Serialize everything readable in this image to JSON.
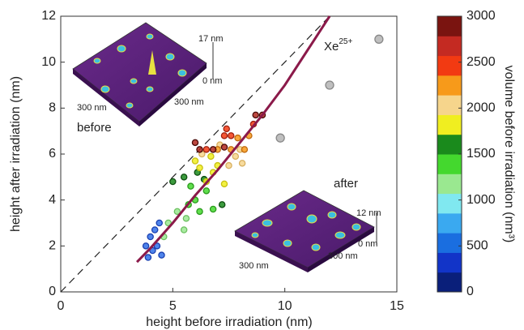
{
  "chart_data": {
    "type": "scatter",
    "x_label": "height before irradiation (nm)",
    "y_label": "height after irradiation (nm)",
    "xlim": [
      0,
      15
    ],
    "xticks": [
      0,
      5,
      10,
      15
    ],
    "ylim": [
      0,
      12
    ],
    "yticks": [
      0,
      2,
      4,
      6,
      8,
      10,
      12
    ],
    "series": [
      {
        "color": "#2f6fe8",
        "edge": "#1a3fb0",
        "x": [
          3.9,
          4.1,
          4.3,
          4.0,
          4.2,
          4.4,
          3.8,
          4.5
        ],
        "values": [
          1.5,
          1.8,
          2.0,
          2.4,
          2.7,
          3.0,
          2.0,
          1.6
        ]
      },
      {
        "color": "#9ae890",
        "edge": "#6cc060",
        "x": [
          4.6,
          4.8,
          5.5,
          5.2,
          5.6
        ],
        "values": [
          2.4,
          3.0,
          2.7,
          3.5,
          3.2
        ]
      },
      {
        "color": "#44d82e",
        "edge": "#2a9a1c",
        "x": [
          5.7,
          6.0,
          6.2,
          6.5,
          5.8,
          6.8
        ],
        "values": [
          3.8,
          4.0,
          3.5,
          4.4,
          4.6,
          3.6
        ]
      },
      {
        "color": "#1a8a1c",
        "edge": "#0e4e10",
        "x": [
          5.0,
          5.5,
          6.1,
          7.2,
          6.4
        ],
        "values": [
          4.8,
          5.0,
          5.2,
          3.8,
          4.9
        ]
      },
      {
        "color": "#f0ee20",
        "edge": "#c8c010",
        "x": [
          6.5,
          6.8,
          7.0,
          6.0,
          6.7,
          7.3,
          6.2
        ],
        "values": [
          4.8,
          5.2,
          5.5,
          5.7,
          5.9,
          4.7,
          5.4
        ]
      },
      {
        "color": "#f6d58c",
        "edge": "#d8b060",
        "x": [
          7.5,
          7.8,
          8.1,
          6.3,
          7.1,
          8.0
        ],
        "values": [
          5.5,
          5.9,
          5.6,
          6.0,
          6.4,
          6.2
        ]
      },
      {
        "color": "#f79a1a",
        "edge": "#c06a10",
        "x": [
          7.6,
          7.9,
          8.2,
          8.4,
          7.0
        ],
        "values": [
          6.2,
          6.7,
          6.2,
          6.8,
          6.2
        ]
      },
      {
        "color": "#f23a12",
        "edge": "#a02010",
        "x": [
          6.5,
          7.3,
          7.6,
          8.6,
          7.4
        ],
        "values": [
          6.2,
          6.8,
          6.8,
          7.3,
          7.1
        ]
      },
      {
        "color": "#b0281e",
        "edge": "#4a0a08",
        "x": [
          6.0,
          6.2,
          6.8,
          8.7,
          9.0,
          7.3
        ],
        "values": [
          6.5,
          6.2,
          6.2,
          7.7,
          7.7,
          6.3
        ]
      },
      {
        "color": "#b4b4b4",
        "edge": "#888888",
        "x": [
          9.8,
          12.0,
          14.2
        ],
        "values": [
          6.7,
          9.0,
          11.0
        ]
      }
    ],
    "fit": {
      "color": "#8b1a4a",
      "x": [
        3.4,
        4,
        5,
        6,
        7,
        8,
        9,
        10,
        11,
        12
      ],
      "values": [
        1.3,
        1.9,
        3.0,
        4.2,
        5.3,
        6.5,
        7.7,
        9.0,
        10.5,
        12.0
      ]
    },
    "identity_line": {
      "color": "#222222",
      "x": [
        0,
        12
      ],
      "values": [
        0,
        12
      ]
    },
    "annotation": {
      "text": "Xe",
      "sup": "25+"
    },
    "inset_before": {
      "label": "before",
      "height": "17 nm",
      "zero": "0 nm",
      "width_a": "300 nm",
      "width_b": "300 nm"
    },
    "inset_after": {
      "label": "after",
      "height": "12 nm",
      "zero": "0 nm",
      "width_a": "300 nm",
      "width_b": "300 nm"
    },
    "colorbar": {
      "label": "volume before irradiation (nm³)",
      "lim": [
        0,
        3000
      ],
      "ticks": [
        0,
        500,
        1000,
        1500,
        2000,
        2500,
        3000
      ],
      "colors": [
        "#0a1f7a",
        "#1234c8",
        "#1a6ee0",
        "#3aa9f0",
        "#80e8f0",
        "#9ae890",
        "#44d82e",
        "#1a8a1c",
        "#f0ee20",
        "#f6d58c",
        "#f79a1a",
        "#f23a12",
        "#c42a22",
        "#7a1410"
      ]
    }
  }
}
